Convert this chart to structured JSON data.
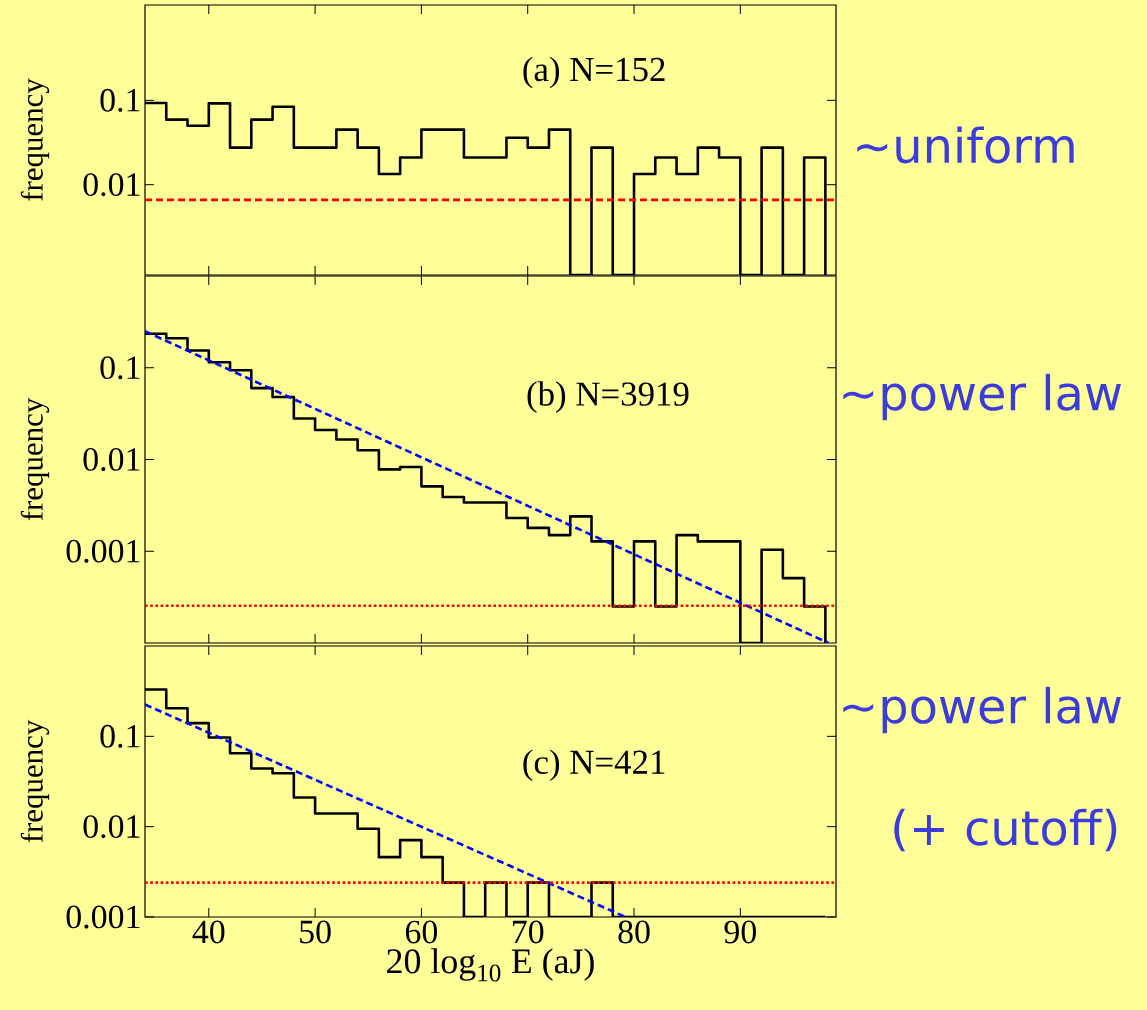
{
  "chart_data": [
    {
      "type": "histogram",
      "ylabel": "frequency",
      "annotations": [
        "(a) N=152",
        "∼uniform"
      ],
      "log": "y",
      "tick_labels": "y",
      "xlim": [
        34,
        99
      ],
      "ylim": [
        0.00085,
        1.35
      ],
      "xticks": [
        40,
        50,
        60,
        70,
        80,
        90
      ],
      "yticks": [
        0.1,
        0.01
      ],
      "bins": [
        34,
        36,
        38,
        40,
        42,
        44,
        46,
        48,
        50,
        52,
        54,
        56,
        58,
        60,
        62,
        64,
        66,
        68,
        70,
        72,
        74,
        76,
        78,
        80,
        82,
        84,
        86,
        88,
        90,
        92,
        94,
        96,
        98
      ],
      "series": [
        {
          "color": "#000000",
          "values": [
            0.093,
            0.059,
            0.05,
            0.092,
            0.0275,
            0.059,
            0.084,
            0.0275,
            0.0275,
            0.045,
            0.0275,
            0.0134,
            0.021,
            0.045,
            0.045,
            0.021,
            0.021,
            0.036,
            0.0275,
            0.045,
            null,
            0.0275,
            null,
            0.0134,
            0.021,
            0.0134,
            0.0275,
            0.021,
            null,
            0.0275,
            null,
            0.021
          ]
        }
      ],
      "ref_lines": [
        {
          "axis": "y",
          "value": 0.0066,
          "color": "#ff0000",
          "line_style": "dashed"
        }
      ]
    },
    {
      "type": "histogram",
      "ylabel": "frequency",
      "annotations": [
        "(b) N=3919",
        "∼power law"
      ],
      "log": "y",
      "tick_labels": "y",
      "xlim": [
        34,
        99
      ],
      "ylim": [
        0.0001,
        1
      ],
      "xticks": [
        40,
        50,
        60,
        70,
        80,
        90
      ],
      "yticks": [
        0.1,
        0.01,
        0.001
      ],
      "bins": [
        34,
        36,
        38,
        40,
        42,
        44,
        46,
        48,
        50,
        52,
        54,
        56,
        58,
        60,
        62,
        64,
        66,
        68,
        70,
        72,
        74,
        76,
        78,
        80,
        82,
        84,
        86,
        88,
        90,
        92,
        94,
        96,
        98
      ],
      "series": [
        {
          "color": "#000000",
          "values": [
            0.235,
            0.21,
            0.154,
            0.115,
            0.094,
            0.06,
            0.048,
            0.028,
            0.021,
            0.0165,
            0.0126,
            0.0078,
            0.0083,
            0.0051,
            0.0039,
            0.0034,
            0.0034,
            0.0023,
            0.0018,
            0.0015,
            0.0024,
            0.00128,
            0.00025,
            0.00128,
            0.00025,
            0.0015,
            0.00128,
            0.00128,
            null,
            0.00104,
            0.00051,
            0.00025
          ]
        },
        {
          "type": "line",
          "color": "#0000ff",
          "line_style": "dashed",
          "x": [
            34,
            98.3
          ],
          "values": [
            0.25,
            0.0001
          ]
        }
      ],
      "ref_lines": [
        {
          "axis": "y",
          "value": 0.000255,
          "color": "#ff0000",
          "line_style": "dotted"
        }
      ]
    },
    {
      "type": "histogram",
      "ylabel": "frequency",
      "xlabel": "20 log$_{10}$ E (aJ)",
      "annotations": [
        "(c) N=421",
        "∼power law",
        "(+ cutoff)"
      ],
      "log": "y",
      "xlim": [
        34,
        99
      ],
      "ylim": [
        0.001,
        1
      ],
      "xticks": [
        40,
        50,
        60,
        70,
        80,
        90
      ],
      "yticks": [
        0.1,
        0.01,
        0.001
      ],
      "bins": [
        34,
        36,
        38,
        40,
        42,
        44,
        46,
        48,
        50,
        52,
        54,
        56,
        58,
        60,
        62,
        64,
        66,
        68,
        70,
        72,
        74,
        76,
        78,
        80,
        82,
        84,
        86,
        88,
        90,
        92,
        94,
        96,
        98
      ],
      "series": [
        {
          "color": "#000000",
          "values": [
            0.33,
            0.205,
            0.14,
            0.097,
            0.065,
            0.044,
            0.039,
            0.021,
            0.014,
            0.014,
            0.0095,
            0.0046,
            0.0071,
            0.0046,
            0.0024,
            null,
            0.0024,
            null,
            0.0024,
            null,
            null,
            0.0024,
            null,
            null,
            null,
            null,
            null,
            null,
            null,
            null,
            null,
            null
          ]
        },
        {
          "type": "line",
          "color": "#0000ff",
          "line_style": "dashed",
          "x": [
            34,
            79.2
          ],
          "values": [
            0.225,
            0.001
          ]
        }
      ],
      "ref_lines": [
        {
          "axis": "y",
          "value": 0.0024,
          "color": "#ff0000",
          "line_style": "dotted"
        }
      ]
    }
  ]
}
